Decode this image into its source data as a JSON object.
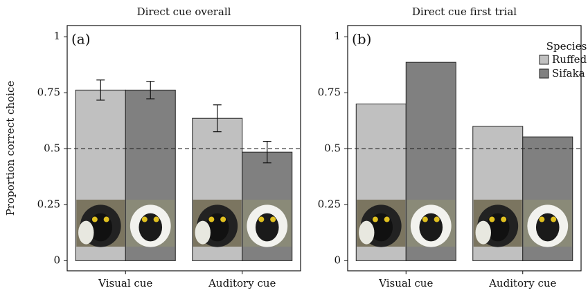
{
  "chart_data": [
    {
      "type": "bar",
      "title": "Direct cue overall",
      "panel_label": "(a)",
      "ylabel": "Proportion correct choice",
      "categories": [
        "Visual cue",
        "Auditory cue"
      ],
      "series": [
        {
          "color": "#c0c0c0",
          "values": [
            0.762,
            0.636
          ],
          "errors": [
            0.045,
            0.06
          ]
        },
        {
          "color": "#808080",
          "values": [
            0.762,
            0.485
          ],
          "errors": [
            0.039,
            0.048
          ]
        }
      ],
      "ylim": [
        -0.045,
        1.05
      ],
      "yticks": [
        0,
        0.25,
        0.5,
        0.75,
        1
      ],
      "reference_line": 0.5,
      "legend": false
    },
    {
      "type": "bar",
      "title": "Direct cue first trial",
      "panel_label": "(b)",
      "categories": [
        "Visual cue",
        "Auditory cue"
      ],
      "series": [
        {
          "name": "Ruffed",
          "color": "#c0c0c0",
          "values": [
            0.7,
            0.6
          ]
        },
        {
          "name": "Sifaka",
          "color": "#808080",
          "values": [
            0.886,
            0.553
          ]
        }
      ],
      "ylim": [
        -0.045,
        1.05
      ],
      "yticks": [
        0,
        0.25,
        0.5,
        0.75,
        1
      ],
      "reference_line": 0.5,
      "legend": true,
      "legend_title": "Species",
      "legend_position": "upper right"
    }
  ]
}
